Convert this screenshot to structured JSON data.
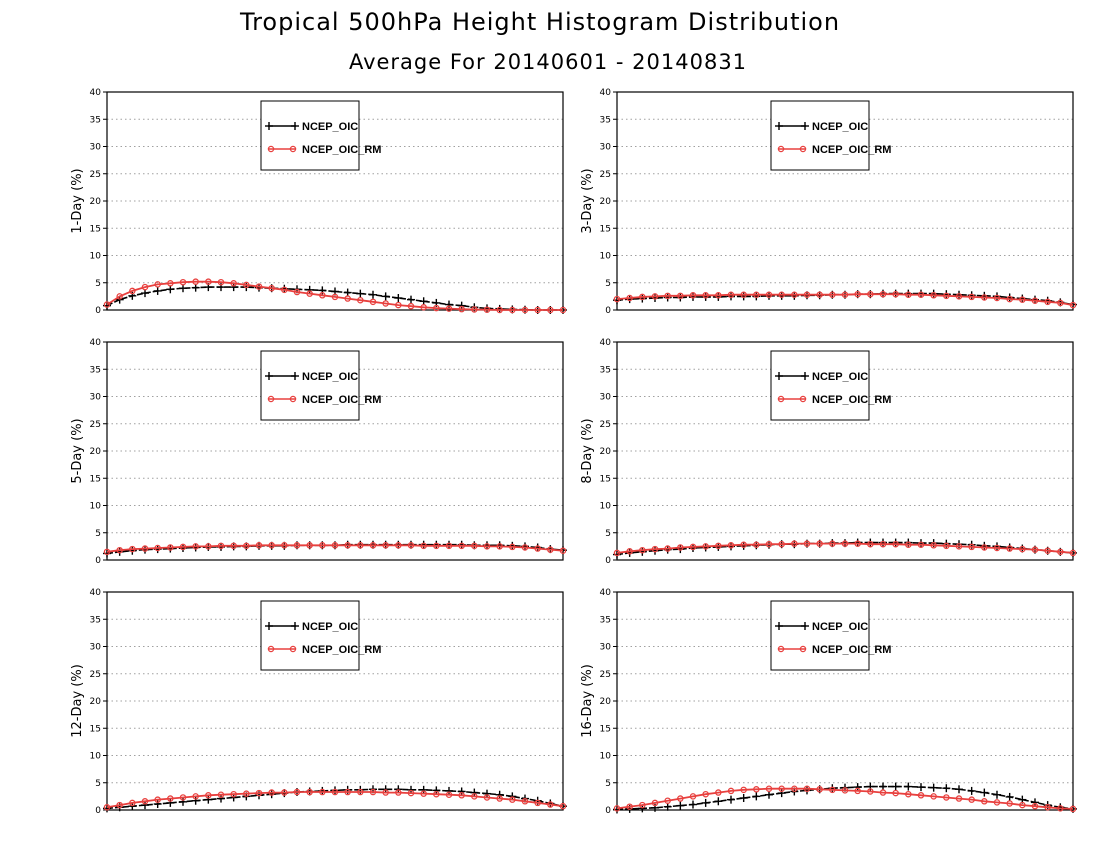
{
  "header": {
    "title": "Tropical 500hPa Height Histogram Distribution",
    "subtitle": "Average For 20140601 - 20140831"
  },
  "colors": {
    "series1": "#000000",
    "series2": "#e8403e",
    "grid": "#a0a0a0"
  },
  "chart_data": [
    {
      "type": "line",
      "ylabel": "1-Day (%)",
      "ylim": [
        0,
        40
      ],
      "yticks": [
        0,
        5,
        10,
        15,
        20,
        25,
        30,
        35,
        40
      ],
      "grid": true,
      "legend_position": "top-center",
      "x": [
        0,
        1,
        2,
        3,
        4,
        5,
        6,
        7,
        8,
        9,
        10,
        11,
        12,
        13,
        14,
        15,
        16,
        17,
        18,
        19,
        20,
        21,
        22,
        23,
        24,
        25,
        26,
        27,
        28,
        29,
        30,
        31,
        32,
        33,
        34,
        35,
        36
      ],
      "series": [
        {
          "name": "NCEP_OIC",
          "marker": "plus",
          "values": [
            0.8,
            1.9,
            2.6,
            3.1,
            3.5,
            3.8,
            4.0,
            4.1,
            4.2,
            4.2,
            4.2,
            4.2,
            4.1,
            4.0,
            3.9,
            3.8,
            3.7,
            3.6,
            3.4,
            3.2,
            3.0,
            2.8,
            2.5,
            2.2,
            1.9,
            1.6,
            1.3,
            1.0,
            0.8,
            0.5,
            0.3,
            0.2,
            0.1,
            0.05,
            0.0,
            0.0,
            0.0
          ]
        },
        {
          "name": "NCEP_OIC_RM",
          "marker": "circle",
          "values": [
            1.0,
            2.5,
            3.5,
            4.2,
            4.7,
            4.9,
            5.1,
            5.2,
            5.2,
            5.1,
            4.9,
            4.6,
            4.3,
            4.0,
            3.7,
            3.3,
            3.0,
            2.7,
            2.4,
            2.1,
            1.8,
            1.5,
            1.2,
            0.9,
            0.7,
            0.5,
            0.35,
            0.25,
            0.15,
            0.1,
            0.05,
            0.0,
            0.0,
            0.0,
            0.0,
            0.0,
            0.0
          ]
        }
      ]
    },
    {
      "type": "line",
      "ylabel": "3-Day (%)",
      "ylim": [
        0,
        40
      ],
      "yticks": [
        0,
        5,
        10,
        15,
        20,
        25,
        30,
        35,
        40
      ],
      "grid": true,
      "legend_position": "top-center",
      "x": [
        0,
        1,
        2,
        3,
        4,
        5,
        6,
        7,
        8,
        9,
        10,
        11,
        12,
        13,
        14,
        15,
        16,
        17,
        18,
        19,
        20,
        21,
        22,
        23,
        24,
        25,
        26,
        27,
        28,
        29,
        30,
        31,
        32,
        33,
        34,
        35,
        36
      ],
      "series": [
        {
          "name": "NCEP_OIC",
          "marker": "plus",
          "values": [
            1.8,
            2.0,
            2.1,
            2.2,
            2.3,
            2.3,
            2.4,
            2.4,
            2.4,
            2.5,
            2.5,
            2.5,
            2.6,
            2.6,
            2.6,
            2.7,
            2.7,
            2.8,
            2.8,
            2.9,
            2.9,
            3.0,
            3.0,
            3.0,
            3.0,
            3.0,
            2.9,
            2.8,
            2.7,
            2.6,
            2.5,
            2.3,
            2.1,
            1.9,
            1.7,
            1.4,
            1.0
          ]
        },
        {
          "name": "NCEP_OIC_RM",
          "marker": "circle",
          "values": [
            2.0,
            2.2,
            2.4,
            2.5,
            2.6,
            2.6,
            2.7,
            2.7,
            2.7,
            2.8,
            2.8,
            2.8,
            2.8,
            2.8,
            2.8,
            2.8,
            2.8,
            2.8,
            2.8,
            2.9,
            2.9,
            2.9,
            2.9,
            2.8,
            2.8,
            2.7,
            2.6,
            2.5,
            2.4,
            2.3,
            2.2,
            2.0,
            1.9,
            1.7,
            1.5,
            1.3,
            0.9
          ]
        }
      ]
    },
    {
      "type": "line",
      "ylabel": "5-Day (%)",
      "ylim": [
        0,
        40
      ],
      "yticks": [
        0,
        5,
        10,
        15,
        20,
        25,
        30,
        35,
        40
      ],
      "grid": true,
      "legend_position": "top-center",
      "x": [
        0,
        1,
        2,
        3,
        4,
        5,
        6,
        7,
        8,
        9,
        10,
        11,
        12,
        13,
        14,
        15,
        16,
        17,
        18,
        19,
        20,
        21,
        22,
        23,
        24,
        25,
        26,
        27,
        28,
        29,
        30,
        31,
        32,
        33,
        34,
        35,
        36
      ],
      "series": [
        {
          "name": "NCEP_OIC",
          "marker": "plus",
          "values": [
            1.2,
            1.5,
            1.7,
            1.9,
            2.0,
            2.1,
            2.2,
            2.3,
            2.4,
            2.4,
            2.5,
            2.5,
            2.6,
            2.6,
            2.6,
            2.7,
            2.7,
            2.7,
            2.7,
            2.8,
            2.8,
            2.8,
            2.8,
            2.8,
            2.8,
            2.8,
            2.8,
            2.8,
            2.8,
            2.7,
            2.7,
            2.7,
            2.6,
            2.5,
            2.3,
            2.0,
            1.8
          ]
        },
        {
          "name": "NCEP_OIC_RM",
          "marker": "circle",
          "values": [
            1.5,
            1.8,
            2.0,
            2.1,
            2.2,
            2.3,
            2.4,
            2.5,
            2.5,
            2.6,
            2.6,
            2.6,
            2.7,
            2.7,
            2.7,
            2.7,
            2.7,
            2.7,
            2.7,
            2.7,
            2.7,
            2.7,
            2.7,
            2.7,
            2.7,
            2.6,
            2.6,
            2.6,
            2.6,
            2.6,
            2.5,
            2.5,
            2.4,
            2.3,
            2.1,
            1.9,
            1.7
          ]
        }
      ]
    },
    {
      "type": "line",
      "ylabel": "8-Day (%)",
      "ylim": [
        0,
        40
      ],
      "yticks": [
        0,
        5,
        10,
        15,
        20,
        25,
        30,
        35,
        40
      ],
      "grid": true,
      "legend_position": "top-center",
      "x": [
        0,
        1,
        2,
        3,
        4,
        5,
        6,
        7,
        8,
        9,
        10,
        11,
        12,
        13,
        14,
        15,
        16,
        17,
        18,
        19,
        20,
        21,
        22,
        23,
        24,
        25,
        26,
        27,
        28,
        29,
        30,
        31,
        32,
        33,
        34,
        35,
        36
      ],
      "series": [
        {
          "name": "NCEP_OIC",
          "marker": "plus",
          "values": [
            1.0,
            1.3,
            1.5,
            1.7,
            1.9,
            2.0,
            2.2,
            2.3,
            2.4,
            2.5,
            2.6,
            2.7,
            2.8,
            2.9,
            2.9,
            3.0,
            3.0,
            3.1,
            3.1,
            3.2,
            3.2,
            3.2,
            3.2,
            3.2,
            3.1,
            3.1,
            3.0,
            2.9,
            2.8,
            2.6,
            2.5,
            2.3,
            2.1,
            1.9,
            1.7,
            1.5,
            1.3
          ]
        },
        {
          "name": "NCEP_OIC_RM",
          "marker": "circle",
          "values": [
            1.3,
            1.6,
            1.8,
            2.0,
            2.1,
            2.3,
            2.4,
            2.5,
            2.6,
            2.7,
            2.8,
            2.8,
            2.9,
            2.9,
            3.0,
            3.0,
            3.0,
            3.0,
            3.0,
            3.0,
            2.9,
            2.9,
            2.9,
            2.8,
            2.8,
            2.7,
            2.6,
            2.5,
            2.4,
            2.3,
            2.2,
            2.1,
            2.0,
            1.9,
            1.7,
            1.5,
            1.3
          ]
        }
      ]
    },
    {
      "type": "line",
      "ylabel": "12-Day (%)",
      "ylim": [
        0,
        40
      ],
      "yticks": [
        0,
        5,
        10,
        15,
        20,
        25,
        30,
        35,
        40
      ],
      "grid": true,
      "legend_position": "top-center",
      "x": [
        0,
        1,
        2,
        3,
        4,
        5,
        6,
        7,
        8,
        9,
        10,
        11,
        12,
        13,
        14,
        15,
        16,
        17,
        18,
        19,
        20,
        21,
        22,
        23,
        24,
        25,
        26,
        27,
        28,
        29,
        30,
        31,
        32,
        33,
        34,
        35,
        36
      ],
      "series": [
        {
          "name": "NCEP_OIC",
          "marker": "plus",
          "values": [
            0.3,
            0.5,
            0.7,
            0.9,
            1.1,
            1.3,
            1.5,
            1.7,
            1.9,
            2.1,
            2.3,
            2.5,
            2.7,
            2.9,
            3.1,
            3.3,
            3.4,
            3.5,
            3.6,
            3.7,
            3.7,
            3.8,
            3.8,
            3.8,
            3.7,
            3.7,
            3.6,
            3.5,
            3.4,
            3.2,
            3.0,
            2.8,
            2.5,
            2.1,
            1.7,
            1.2,
            0.7
          ]
        },
        {
          "name": "NCEP_OIC_RM",
          "marker": "circle",
          "values": [
            0.5,
            0.9,
            1.3,
            1.6,
            1.9,
            2.1,
            2.3,
            2.5,
            2.7,
            2.8,
            2.9,
            3.0,
            3.1,
            3.2,
            3.2,
            3.3,
            3.3,
            3.3,
            3.3,
            3.3,
            3.3,
            3.3,
            3.2,
            3.2,
            3.1,
            3.0,
            2.9,
            2.8,
            2.7,
            2.5,
            2.3,
            2.1,
            1.9,
            1.6,
            1.3,
            1.0,
            0.7
          ]
        }
      ]
    },
    {
      "type": "line",
      "ylabel": "16-Day (%)",
      "ylim": [
        0,
        40
      ],
      "yticks": [
        0,
        5,
        10,
        15,
        20,
        25,
        30,
        35,
        40
      ],
      "grid": true,
      "legend_position": "top-center",
      "x": [
        0,
        1,
        2,
        3,
        4,
        5,
        6,
        7,
        8,
        9,
        10,
        11,
        12,
        13,
        14,
        15,
        16,
        17,
        18,
        19,
        20,
        21,
        22,
        23,
        24,
        25,
        26,
        27,
        28,
        29,
        30,
        31,
        32,
        33,
        34,
        35,
        36
      ],
      "series": [
        {
          "name": "NCEP_OIC",
          "marker": "plus",
          "values": [
            0.1,
            0.2,
            0.3,
            0.4,
            0.6,
            0.8,
            1.0,
            1.3,
            1.6,
            1.9,
            2.2,
            2.5,
            2.8,
            3.1,
            3.4,
            3.6,
            3.8,
            4.0,
            4.1,
            4.2,
            4.3,
            4.3,
            4.3,
            4.3,
            4.2,
            4.1,
            4.0,
            3.8,
            3.5,
            3.2,
            2.8,
            2.4,
            1.9,
            1.4,
            0.9,
            0.5,
            0.2
          ]
        },
        {
          "name": "NCEP_OIC_RM",
          "marker": "circle",
          "values": [
            0.3,
            0.6,
            0.9,
            1.3,
            1.7,
            2.1,
            2.5,
            2.9,
            3.2,
            3.5,
            3.7,
            3.8,
            3.9,
            3.9,
            3.9,
            3.9,
            3.8,
            3.7,
            3.6,
            3.5,
            3.4,
            3.2,
            3.1,
            2.9,
            2.7,
            2.5,
            2.3,
            2.1,
            1.9,
            1.6,
            1.4,
            1.2,
            0.9,
            0.7,
            0.5,
            0.3,
            0.2
          ]
        }
      ]
    }
  ]
}
